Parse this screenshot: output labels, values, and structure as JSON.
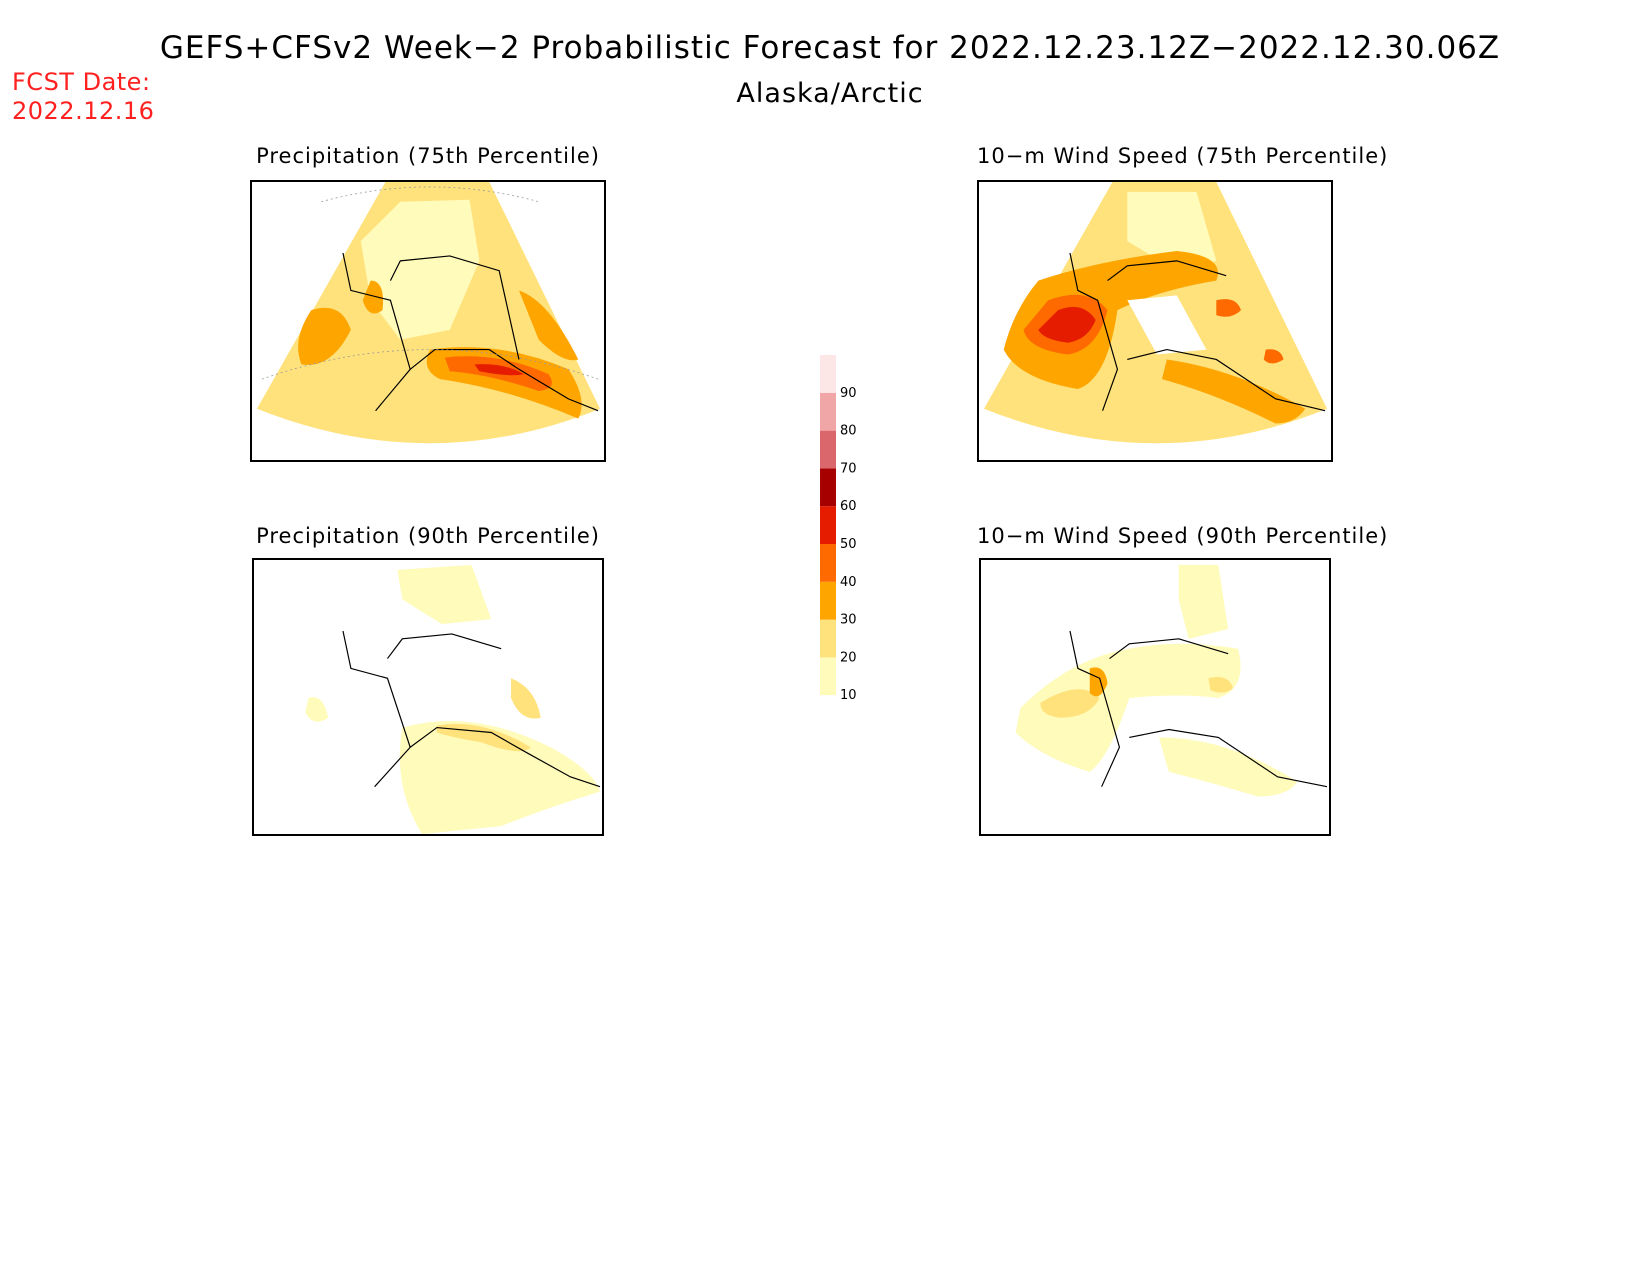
{
  "header": {
    "title": "GEFS+CFSv2 Week−2 Probabilistic Forecast for 2022.12.23.12Z−2022.12.30.06Z",
    "subtitle": "Alaska/Arctic",
    "fcst_label": "FCST Date:",
    "fcst_date": "2022.12.16"
  },
  "panels": [
    {
      "id": "precip75",
      "title": "Precipitation (75th Percentile)"
    },
    {
      "id": "wind75",
      "title": "10−m Wind Speed (75th Percentile)"
    },
    {
      "id": "precip90",
      "title": "Precipitation (90th Percentile)"
    },
    {
      "id": "wind90",
      "title": "10−m Wind Speed (90th Percentile)"
    }
  ],
  "colorbar": {
    "levels": [
      "10",
      "20",
      "30",
      "40",
      "50",
      "60",
      "70",
      "80",
      "90"
    ],
    "colors": [
      "#fffbbb",
      "#ffe27c",
      "#ffa500",
      "#ff6a00",
      "#e61c00",
      "#a60000",
      "#d9676b",
      "#f0a6a6",
      "#fce6e6"
    ]
  }
}
